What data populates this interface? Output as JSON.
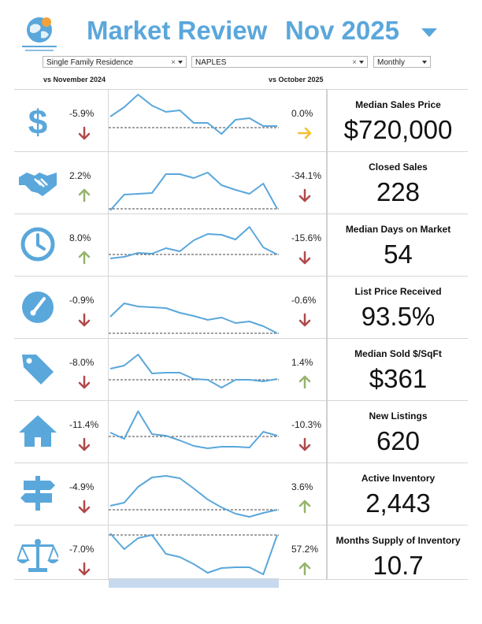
{
  "header": {
    "title": "Market Review",
    "period": "Nov 2025"
  },
  "filters": {
    "property_type": "Single Family Residence",
    "area": "NAPLES",
    "frequency": "Monthly",
    "clear_glyph": "×"
  },
  "comparisons": {
    "left": "vs November 2024",
    "right": "vs October 2025"
  },
  "colors": {
    "accent": "#5aa7db",
    "down": "#b0494a",
    "up": "#95b36a",
    "flat": "#f1c232",
    "baseline": "#444444",
    "shade": "#c6d9ef"
  },
  "metrics": [
    {
      "key": "median-sales-price",
      "icon": "dollar-icon",
      "title": "Median Sales Price",
      "value": "$720,000",
      "yoy": "-5.9%",
      "yoy_dir": "down",
      "mom": "0.0%",
      "mom_dir": "flat",
      "series": [
        28,
        16,
        0,
        14,
        22,
        20,
        36,
        36,
        50,
        32,
        30,
        40,
        40
      ],
      "baseline": 42
    },
    {
      "key": "closed-sales",
      "icon": "handshake-icon",
      "title": "Closed Sales",
      "value": "228",
      "yoy": "2.2%",
      "yoy_dir": "up",
      "mom": "-34.1%",
      "mom_dir": "down",
      "series": [
        68,
        48,
        47,
        46,
        22,
        22,
        27,
        20,
        36,
        42,
        47,
        34,
        66
      ],
      "baseline": 66
    },
    {
      "key": "median-days-on-market",
      "icon": "clock-icon",
      "title": "Median Days on Market",
      "value": "54",
      "yoy": "8.0%",
      "yoy_dir": "up",
      "mom": "-15.6%",
      "mom_dir": "down",
      "series": [
        50,
        48,
        43,
        44,
        37,
        41,
        27,
        19,
        20,
        26,
        10,
        36,
        45
      ],
      "baseline": 45
    },
    {
      "key": "list-price-received",
      "icon": "gauge-icon",
      "title": "List Price Received",
      "value": "93.5%",
      "yoy": "-0.9%",
      "yoy_dir": "down",
      "mom": "-0.6%",
      "mom_dir": "down",
      "series": [
        45,
        28,
        32,
        33,
        34,
        40,
        44,
        49,
        46,
        53,
        51,
        57,
        66
      ],
      "baseline": 66
    },
    {
      "key": "median-sold-per-sqft",
      "icon": "price-tag-icon",
      "title": "Median Sold $/SqFt",
      "value": "$361",
      "yoy": "-8.0%",
      "yoy_dir": "down",
      "mom": "1.4%",
      "mom_dir": "up",
      "series": [
        32,
        28,
        14,
        38,
        37,
        37,
        45,
        46,
        56,
        46,
        46,
        48,
        45
      ],
      "baseline": 46
    },
    {
      "key": "new-listings",
      "icon": "house-icon",
      "title": "New Listings",
      "value": "620",
      "yoy": "-11.4%",
      "yoy_dir": "down",
      "mom": "-10.3%",
      "mom_dir": "down",
      "series": [
        34,
        42,
        7,
        36,
        38,
        44,
        51,
        54,
        52,
        52,
        53,
        33,
        38
      ],
      "baseline": 39
    },
    {
      "key": "active-inventory",
      "icon": "signpost-icon",
      "title": "Active Inventory",
      "value": "2,443",
      "yoy": "-4.9%",
      "yoy_dir": "down",
      "mom": "3.6%",
      "mom_dir": "up",
      "series": [
        48,
        44,
        24,
        12,
        10,
        13,
        26,
        40,
        50,
        58,
        62,
        57,
        53
      ],
      "baseline": 53
    },
    {
      "key": "months-supply-of-inventory",
      "icon": "scale-icon",
      "title": "Months Supply of Inventory",
      "value": "10.7",
      "yoy": "-7.0%",
      "yoy_dir": "down",
      "mom": "57.2%",
      "mom_dir": "up",
      "series": [
        4,
        24,
        10,
        6,
        30,
        34,
        43,
        54,
        48,
        47,
        47,
        56,
        6
      ],
      "baseline": 6
    }
  ]
}
